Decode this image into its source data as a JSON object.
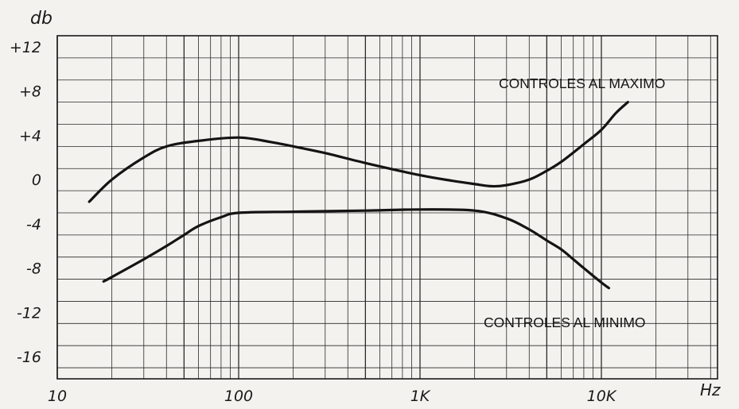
{
  "chart_data": {
    "type": "line",
    "title": "",
    "ylabel": "db",
    "xlabel": "Hz",
    "x_scale": "log",
    "xlim": [
      10,
      25000
    ],
    "ylim": [
      -18,
      13
    ],
    "grid": true,
    "x_tick_labels": [
      {
        "value": 10,
        "label": "10"
      },
      {
        "value": 100,
        "label": "100"
      },
      {
        "value": 1000,
        "label": "1K"
      },
      {
        "value": 10000,
        "label": "10K"
      }
    ],
    "y_tick_labels": [
      {
        "value": 12,
        "label": "+12"
      },
      {
        "value": 8,
        "label": "+8"
      },
      {
        "value": 4,
        "label": "+4"
      },
      {
        "value": 0,
        "label": "0"
      },
      {
        "value": -4,
        "label": "-4"
      },
      {
        "value": -8,
        "label": "-8"
      },
      {
        "value": -12,
        "label": "-12"
      },
      {
        "value": -16,
        "label": "-16"
      }
    ],
    "series": [
      {
        "name": "CONTROLES AL MAXIMO",
        "color": "#141414",
        "points": [
          [
            15,
            -2
          ],
          [
            20,
            0
          ],
          [
            30,
            2
          ],
          [
            40,
            3
          ],
          [
            60,
            3.5
          ],
          [
            100,
            3.8
          ],
          [
            150,
            3.4
          ],
          [
            200,
            3
          ],
          [
            300,
            2.4
          ],
          [
            500,
            1.5
          ],
          [
            1000,
            0.4
          ],
          [
            1500,
            -0.1
          ],
          [
            2000,
            -0.4
          ],
          [
            2500,
            -0.6
          ],
          [
            3000,
            -0.5
          ],
          [
            4000,
            0
          ],
          [
            5000,
            0.8
          ],
          [
            6000,
            1.6
          ],
          [
            8000,
            3.2
          ],
          [
            10000,
            4.5
          ],
          [
            12000,
            6
          ],
          [
            14000,
            7
          ]
        ]
      },
      {
        "name": "CONTROLES AL MINIMO",
        "color": "#141414",
        "points": [
          [
            18,
            -9.2
          ],
          [
            20,
            -8.8
          ],
          [
            30,
            -7.2
          ],
          [
            40,
            -6
          ],
          [
            50,
            -5
          ],
          [
            60,
            -4.2
          ],
          [
            80,
            -3.4
          ],
          [
            100,
            -3
          ],
          [
            200,
            -2.9
          ],
          [
            500,
            -2.8
          ],
          [
            1000,
            -2.7
          ],
          [
            2000,
            -2.8
          ],
          [
            3000,
            -3.5
          ],
          [
            4000,
            -4.5
          ],
          [
            5000,
            -5.5
          ],
          [
            6000,
            -6.3
          ],
          [
            7000,
            -7.2
          ],
          [
            8000,
            -8
          ],
          [
            10000,
            -9.3
          ],
          [
            11000,
            -9.8
          ]
        ]
      }
    ],
    "annotations": [
      {
        "text": "CONTROLES AL MAXIMO",
        "series": 0
      },
      {
        "text": "CONTROLES AL MINIMO",
        "series": 1
      }
    ]
  }
}
